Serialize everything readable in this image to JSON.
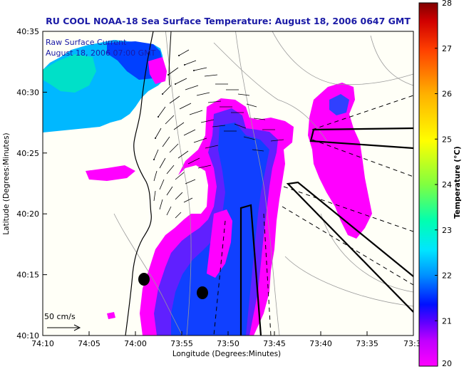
{
  "map": {
    "title": "RU COOL  NOAA-18  Sea Surface Temperature:  August 18, 2006 0647 GMT",
    "legend_line1": "Raw Surface Current",
    "legend_line2": "August 18, 2006 07:00 GMT",
    "scale_label": "50 cm/s",
    "xlabel": "Longitude (Degrees:Minutes)",
    "ylabel": "Latitude (Degrees:Minutes)",
    "x_ticks": [
      "74:10",
      "74:05",
      "74:00",
      "73:55",
      "73:50",
      "73:45",
      "73:40",
      "73:35",
      "73:3"
    ],
    "y_ticks": [
      "40:35",
      "40:30",
      "40:25",
      "40:20",
      "40:15",
      "40:10"
    ],
    "colorbar": {
      "label": "Temperature (°C)",
      "ticks": [
        "28",
        "27",
        "26",
        "25",
        "24",
        "23",
        "22",
        "21",
        "20"
      ],
      "min": 20,
      "max": 28,
      "colors": [
        "#ff00ff",
        "#9a00ff",
        "#0010ff",
        "#0090ff",
        "#00e6ff",
        "#00ffb0",
        "#80ff40",
        "#ffff00",
        "#ffb000",
        "#ff5a00",
        "#e00000",
        "#800000"
      ]
    }
  }
}
